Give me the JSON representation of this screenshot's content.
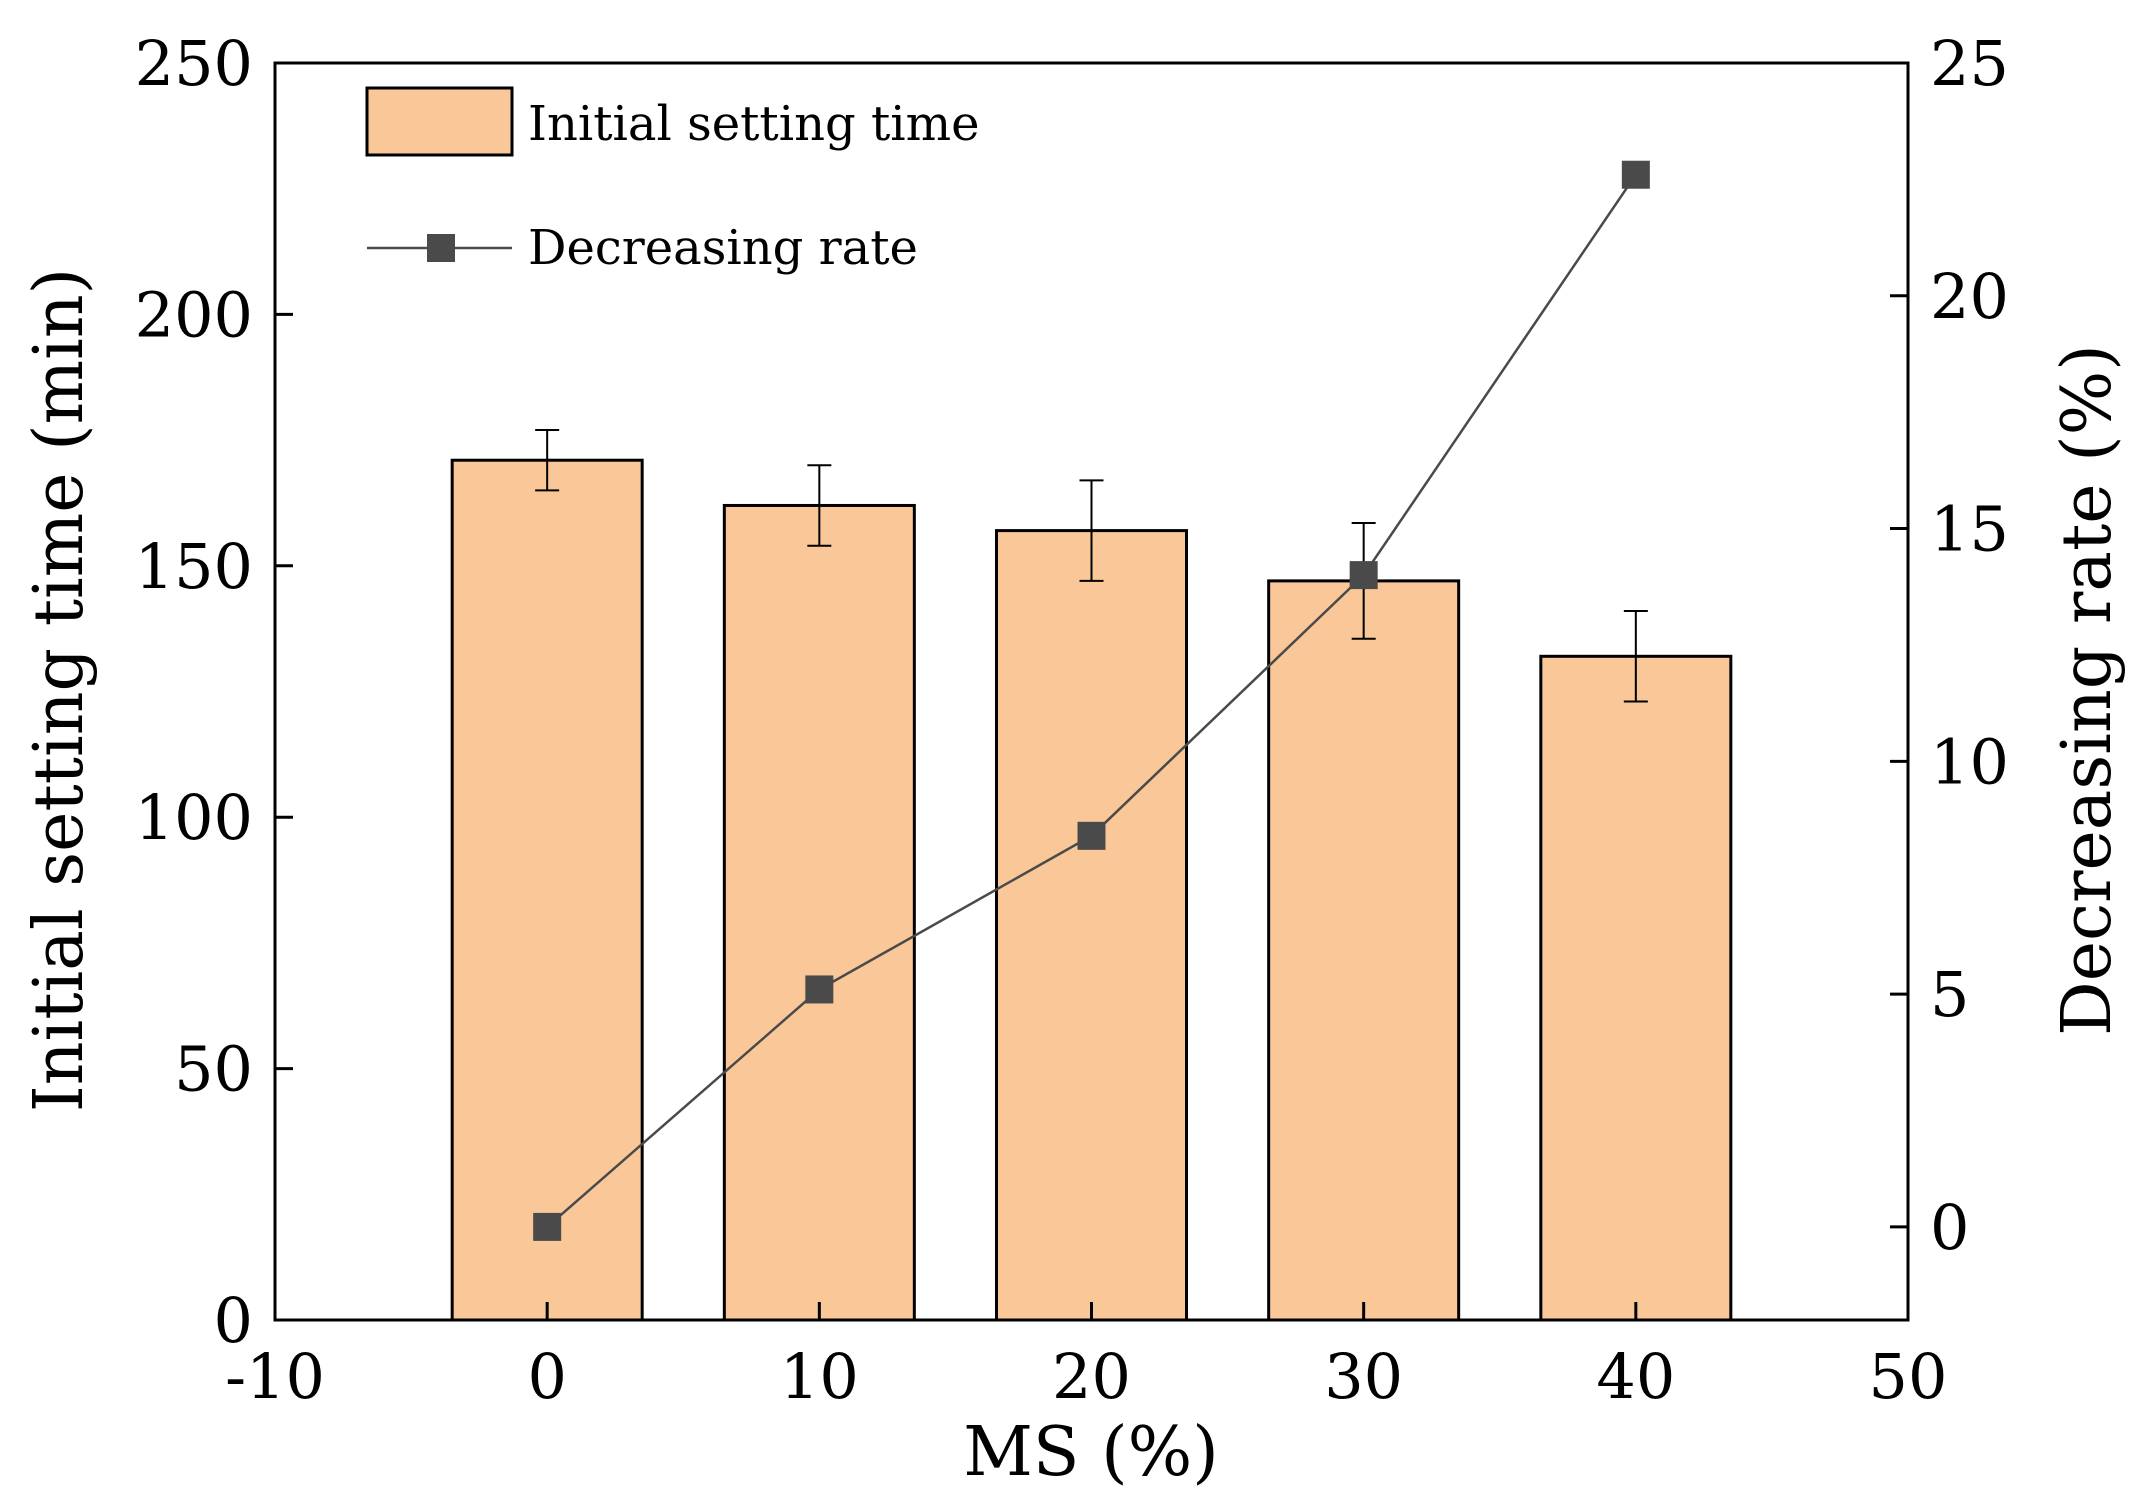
{
  "chart_data": {
    "type": "bar+line",
    "xlabel": "MS (%)",
    "ylabel_left": "Initial setting time (min)",
    "ylabel_right": "Decreasing rate (%)",
    "xlim": [
      -10,
      50
    ],
    "x_ticks": [
      -10,
      0,
      10,
      20,
      30,
      40,
      50
    ],
    "y_left_lim": [
      0,
      250
    ],
    "y_left_ticks": [
      0,
      50,
      100,
      150,
      200,
      250
    ],
    "y_right_lim": [
      -2,
      25
    ],
    "y_right_ticks": [
      0,
      5,
      10,
      15,
      20,
      25
    ],
    "x": [
      0,
      10,
      20,
      30,
      40
    ],
    "series": [
      {
        "name": "Initial setting time",
        "type": "bar",
        "axis": "left",
        "color": "#FAC898",
        "values": [
          171,
          162,
          157,
          147,
          132
        ],
        "errors": [
          6,
          8,
          10,
          11.5,
          9
        ]
      },
      {
        "name": "Decreasing rate",
        "type": "line",
        "axis": "right",
        "color": "#4a4a4a",
        "values": [
          0,
          5.1,
          8.4,
          14.0,
          22.6
        ]
      }
    ],
    "legend": {
      "bar_label": "Initial setting time",
      "line_label": "Decreasing rate",
      "position": "top-left"
    }
  }
}
